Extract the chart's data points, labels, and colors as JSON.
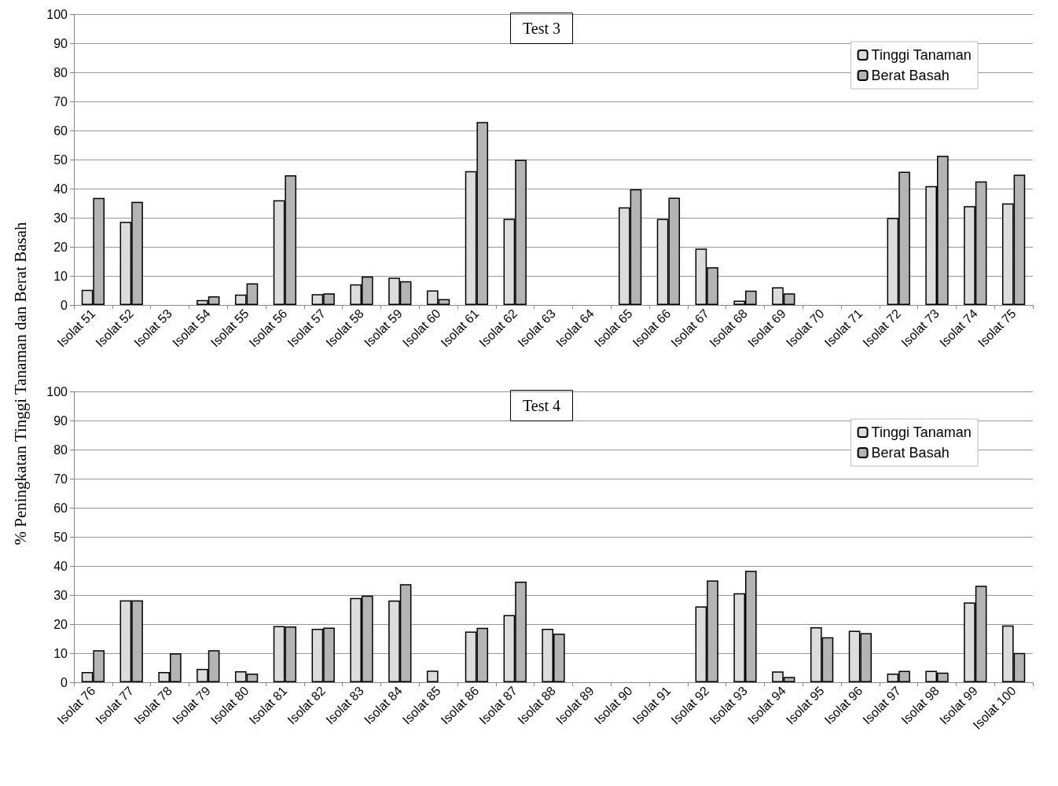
{
  "chart_data": [
    {
      "type": "bar",
      "title": "Test 3",
      "ylabel": "% Peningkatan Tinggi Tanaman dan Berat Basah",
      "categories": [
        "Isolat 51",
        "Isolat 52",
        "Isolat 53",
        "Isolat 54",
        "Isolat 55",
        "Isolat 56",
        "Isolat 57",
        "Isolat 58",
        "Isolat 59",
        "Isolat 60",
        "Isolat 61",
        "Isolat 62",
        "Isolat 63",
        "Isolat 64",
        "Isolat 65",
        "Isolat 66",
        "Isolat 67",
        "Isolat 68",
        "Isolat 69",
        "Isolat 70",
        "Isolat 71",
        "Isolat 72",
        "Isolat 73",
        "Isolat 74",
        "Isolat 75"
      ],
      "series": [
        {
          "name": "Tinggi Tanaman",
          "color": "#dcdcdc",
          "values": [
            5.2,
            28.6,
            0,
            1.7,
            3.6,
            36,
            3.7,
            7.1,
            9.4,
            5,
            46,
            29.6,
            0,
            0,
            33.6,
            29.6,
            19.4,
            1.5,
            6.1,
            0,
            0,
            29.9,
            40.9,
            34,
            34.9
          ]
        },
        {
          "name": "Berat Basah",
          "color": "#b4b4b4",
          "values": [
            36.8,
            35.5,
            0,
            3,
            7.4,
            44.6,
            4,
            9.8,
            8.2,
            2,
            62.9,
            49.9,
            0,
            0,
            39.8,
            36.9,
            13,
            4.9,
            4,
            0,
            0,
            45.8,
            51.3,
            42.5,
            44.8
          ]
        }
      ],
      "ylim": [
        0,
        100
      ],
      "yticks": [
        0,
        10,
        20,
        30,
        40,
        50,
        60,
        70,
        80,
        90,
        100
      ],
      "grid": "y",
      "legend": "top right"
    },
    {
      "type": "bar",
      "title": "Test 4",
      "categories": [
        "Isolat 76",
        "Isolat 77",
        "Isolat 78",
        "Isolat 79",
        "Isolat 80",
        "Isolat 81",
        "Isolat 82",
        "Isolat 83",
        "Isolat 84",
        "Isolat 85",
        "Isolat 86",
        "Isolat 87",
        "Isolat 88",
        "Isolat 89",
        "Isolat 90",
        "Isolat 91",
        "Isolat 92",
        "Isolat 93",
        "Isolat 94",
        "Isolat 95",
        "Isolat 96",
        "Isolat 97",
        "Isolat 98",
        "Isolat 99",
        "Isolat 100"
      ],
      "series": [
        {
          "name": "Tinggi Tanaman",
          "color": "#dcdcdc",
          "values": [
            3.5,
            28.2,
            3.5,
            4.6,
            3.8,
            19.3,
            18.4,
            29,
            28.1,
            4,
            17.4,
            23.1,
            18.4,
            0,
            0,
            0,
            26.1,
            30.6,
            3.7,
            18.9,
            17.7,
            3,
            3.9,
            27.4,
            19.5
          ]
        },
        {
          "name": "Berat Basah",
          "color": "#b4b4b4",
          "values": [
            11,
            28.2,
            9.9,
            11,
            3,
            19.2,
            18.8,
            29.8,
            33.7,
            0,
            18.7,
            34.6,
            16.7,
            0,
            0,
            0,
            35,
            38.3,
            1.8,
            15.5,
            16.9,
            3.9,
            3.3,
            33.2,
            10.1
          ]
        }
      ],
      "ylim": [
        0,
        100
      ],
      "yticks": [
        0,
        10,
        20,
        30,
        40,
        50,
        60,
        70,
        80,
        90,
        100
      ],
      "grid": "y",
      "legend": "top right"
    }
  ]
}
